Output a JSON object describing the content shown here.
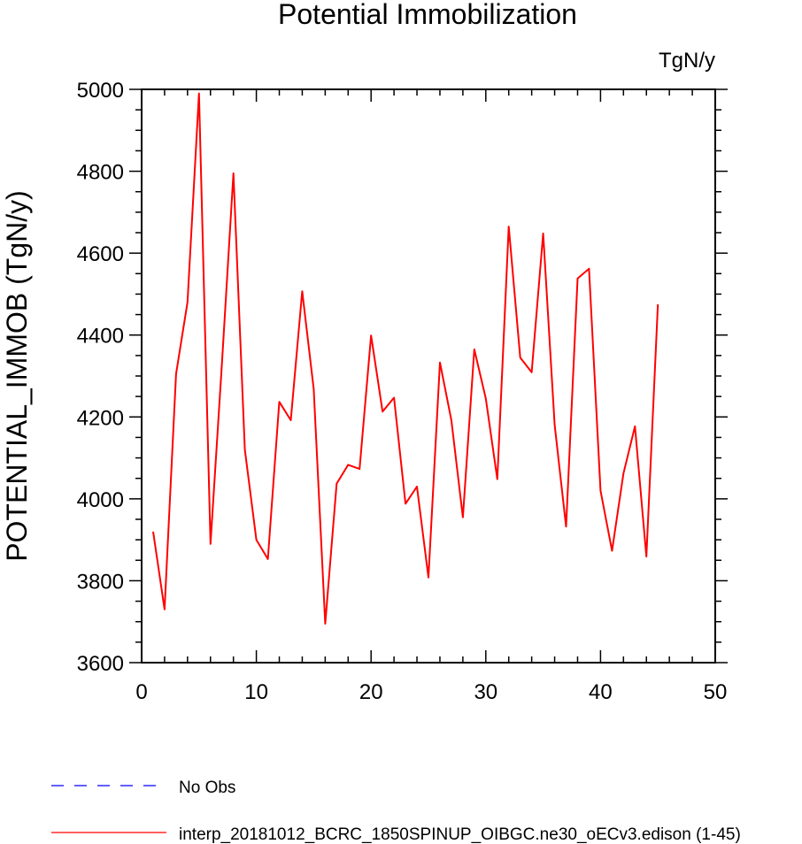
{
  "chart_data": {
    "type": "line",
    "title": "Potential Immobilization",
    "units_label": "TgN/y",
    "xlabel": "",
    "ylabel": "POTENTIAL_IMMOB  (TgN/y)",
    "xlim": [
      0,
      50
    ],
    "ylim": [
      3600,
      5000
    ],
    "xticks": [
      0,
      10,
      20,
      30,
      40,
      50
    ],
    "yticks": [
      3600,
      3800,
      4000,
      4200,
      4400,
      4600,
      4800,
      5000
    ],
    "grid": false,
    "legend_position": "bottom-left",
    "series": [
      {
        "name": "interp_20181012_BCRC_1850SPINUP_OIBGC.ne30_oECv3.edison (1-45)",
        "color": "#ff0000",
        "x": [
          1,
          2,
          3,
          4,
          5,
          6,
          7,
          8,
          9,
          10,
          11,
          12,
          13,
          14,
          15,
          16,
          17,
          18,
          19,
          20,
          21,
          22,
          23,
          24,
          25,
          26,
          27,
          28,
          29,
          30,
          31,
          32,
          33,
          34,
          35,
          36,
          37,
          38,
          39,
          40,
          41,
          42,
          43,
          44,
          45
        ],
        "values": [
          3920,
          3730,
          4305,
          4480,
          4990,
          3890,
          4330,
          4795,
          4120,
          3900,
          3853,
          4237,
          4192,
          4507,
          4268,
          3695,
          4037,
          4083,
          4073,
          4399,
          4213,
          4247,
          3988,
          4030,
          3808,
          4333,
          4192,
          3955,
          4365,
          4245,
          4048,
          4665,
          4345,
          4309,
          4648,
          4180,
          3932,
          4538,
          4562,
          4020,
          3873,
          4062,
          4177,
          3859,
          4475
        ]
      }
    ],
    "legend": [
      {
        "label": "No Obs",
        "color": "#0000ff",
        "style": "dashed"
      },
      {
        "label": "interp_20181012_BCRC_1850SPINUP_OIBGC.ne30_oECv3.edison (1-45)",
        "color": "#ff0000",
        "style": "solid"
      }
    ]
  }
}
